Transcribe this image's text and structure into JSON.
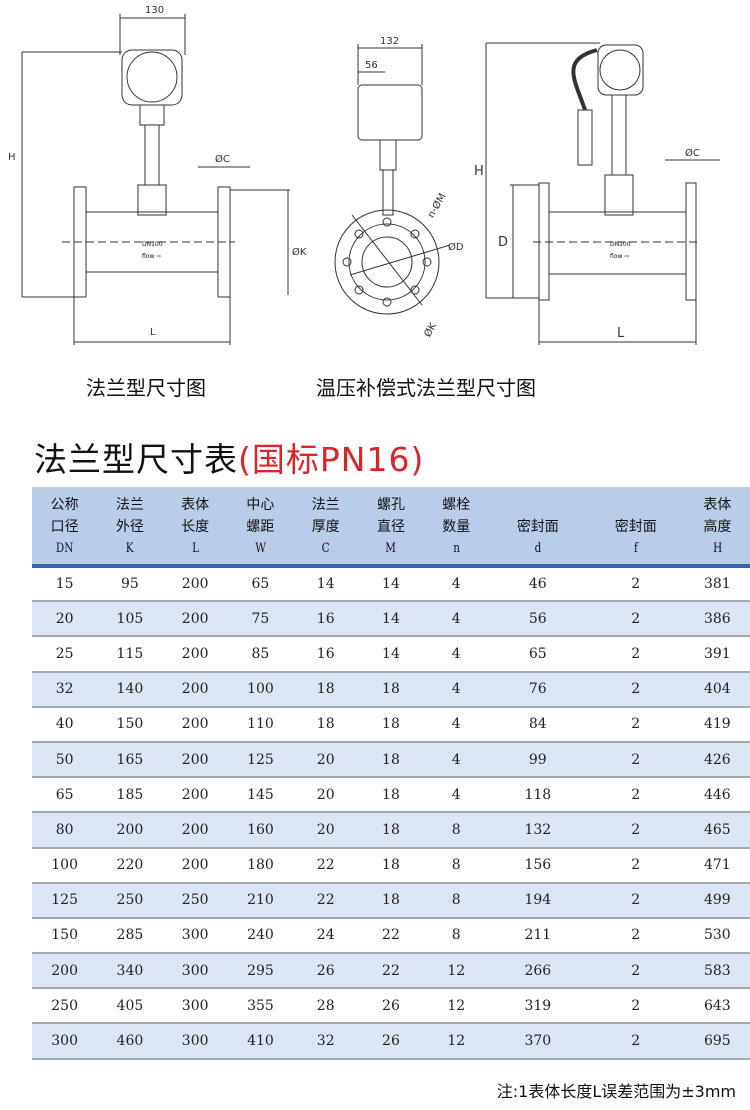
{
  "drawings": {
    "flange": {
      "caption": "法兰型尺寸图",
      "dim_width": "130",
      "dim_height": "H",
      "dim_c": "ØC",
      "dim_k": "ØK",
      "dim_l": "L",
      "label_dn": "DN100",
      "label_flow": "flow ⇨"
    },
    "side": {
      "dim_width": "132",
      "dim_offset": "56",
      "dim_holes": "n-ØM",
      "dim_d": "ØD",
      "dim_k": "ØK"
    },
    "compensated": {
      "caption": "温压补偿式法兰型尺寸图",
      "dim_height": "H",
      "dim_d": "D",
      "dim_c": "ØC",
      "dim_l": "L",
      "label_dn": "DN100",
      "label_flow": "flow ⇨"
    }
  },
  "table_title": {
    "main": "法兰型尺寸表",
    "sub": "(国标PN16)"
  },
  "table": {
    "headers": [
      {
        "l1": "公称",
        "l2": "口径",
        "en": "DN"
      },
      {
        "l1": "法兰",
        "l2": "外径",
        "en": "K"
      },
      {
        "l1": "表体",
        "l2": "长度",
        "en": "L"
      },
      {
        "l1": "中心",
        "l2": "螺距",
        "en": "W"
      },
      {
        "l1": "法兰",
        "l2": "厚度",
        "en": "C"
      },
      {
        "l1": "螺孔",
        "l2": "直径",
        "en": "M"
      },
      {
        "l1": "螺栓",
        "l2": "数量",
        "en": "n"
      },
      {
        "l1": "",
        "l2": "密封面",
        "en": "d"
      },
      {
        "l1": "",
        "l2": "密封面",
        "en": "f"
      },
      {
        "l1": "表体",
        "l2": "高度",
        "en": "H"
      }
    ],
    "rows": [
      [
        "15",
        "95",
        "200",
        "65",
        "14",
        "14",
        "4",
        "46",
        "2",
        "381"
      ],
      [
        "20",
        "105",
        "200",
        "75",
        "16",
        "14",
        "4",
        "56",
        "2",
        "386"
      ],
      [
        "25",
        "115",
        "200",
        "85",
        "16",
        "14",
        "4",
        "65",
        "2",
        "391"
      ],
      [
        "32",
        "140",
        "200",
        "100",
        "18",
        "18",
        "4",
        "76",
        "2",
        "404"
      ],
      [
        "40",
        "150",
        "200",
        "110",
        "18",
        "18",
        "4",
        "84",
        "2",
        "419"
      ],
      [
        "50",
        "165",
        "200",
        "125",
        "20",
        "18",
        "4",
        "99",
        "2",
        "426"
      ],
      [
        "65",
        "185",
        "200",
        "145",
        "20",
        "18",
        "4",
        "118",
        "2",
        "446"
      ],
      [
        "80",
        "200",
        "200",
        "160",
        "20",
        "18",
        "8",
        "132",
        "2",
        "465"
      ],
      [
        "100",
        "220",
        "200",
        "180",
        "22",
        "18",
        "8",
        "156",
        "2",
        "471"
      ],
      [
        "125",
        "250",
        "250",
        "210",
        "22",
        "18",
        "8",
        "194",
        "2",
        "499"
      ],
      [
        "150",
        "285",
        "300",
        "240",
        "24",
        "22",
        "8",
        "211",
        "2",
        "530"
      ],
      [
        "200",
        "340",
        "300",
        "295",
        "26",
        "22",
        "12",
        "266",
        "2",
        "583"
      ],
      [
        "250",
        "405",
        "300",
        "355",
        "28",
        "26",
        "12",
        "319",
        "2",
        "643"
      ],
      [
        "300",
        "460",
        "300",
        "410",
        "32",
        "26",
        "12",
        "370",
        "2",
        "695"
      ]
    ]
  },
  "note": "注:1表体长度L误差范围为±3mm",
  "colors": {
    "header_bg": "#b9cde9",
    "alt_row": "#dbe5f4",
    "accent_line": "#2f67b1",
    "title_red": "#d7252b"
  }
}
